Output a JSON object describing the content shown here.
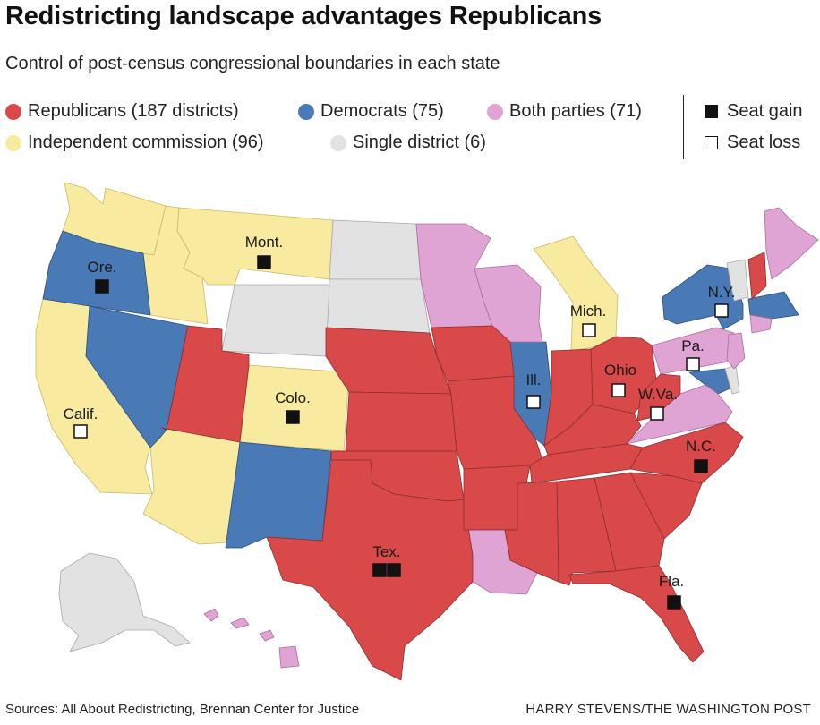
{
  "title": "Redistricting landscape advantages Republicans",
  "subtitle": "Control of post-census congressional boundaries in each state",
  "legend": {
    "republicans": {
      "label": "Republicans (187 districts)",
      "color": "#d9494a"
    },
    "democrats": {
      "label": "Democrats (75)",
      "color": "#4a7ab5"
    },
    "both": {
      "label": "Both parties (71)",
      "color": "#dfa4d3"
    },
    "independent": {
      "label": "Independent commission (96)",
      "color": "#f8ea9e"
    },
    "single": {
      "label": "Single district (6)",
      "color": "#e2e2e2"
    },
    "seat_gain": {
      "label": "Seat gain",
      "icon": "filled-square"
    },
    "seat_loss": {
      "label": "Seat loss",
      "icon": "empty-square"
    }
  },
  "labels": {
    "ore": "Ore.",
    "mont": "Mont.",
    "calif": "Calif.",
    "colo": "Colo.",
    "tex": "Tex.",
    "ill": "Ill.",
    "mich": "Mich.",
    "ohio": "Ohio",
    "pa": "Pa.",
    "wva": "W.Va.",
    "ny": "N.Y.",
    "nc": "N.C.",
    "fla": "Fla."
  },
  "seat_changes": {
    "ore": "gain",
    "mont": "gain",
    "calif": "loss",
    "colo": "gain",
    "tex": "gain x2",
    "ill": "loss",
    "mich": "loss",
    "ohio": "loss",
    "pa": "loss",
    "wva": "loss",
    "ny": "loss",
    "nc": "gain",
    "fla": "gain"
  },
  "footer": {
    "sources": "Sources: All About Redistricting, Brennan Center for Justice",
    "credit": "HARRY STEVENS/THE WASHINGTON POST"
  }
}
